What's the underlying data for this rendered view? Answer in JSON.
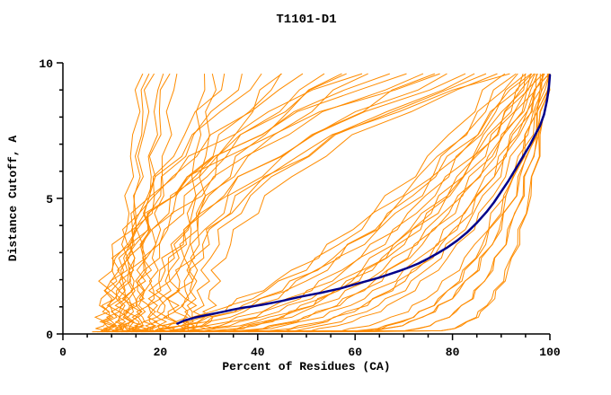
{
  "chart_data": {
    "type": "line",
    "title": "T1101-D1",
    "xlabel": "Percent of Residues (CA)",
    "ylabel": "Distance Cutoff, A",
    "xlim": [
      0,
      100
    ],
    "ylim": [
      0,
      10
    ],
    "x_major_ticks": [
      0,
      20,
      40,
      60,
      80,
      100
    ],
    "x_minor_step": 5,
    "y_major_ticks": [
      0,
      5,
      10
    ],
    "y_minor_step": 1,
    "grid": false,
    "legend": null,
    "colors": {
      "models": "#ff8c00",
      "highlighted": "#00008b",
      "axis": "#000000",
      "background": "#ffffff"
    },
    "highlighted_model_curve": {
      "name": "highlighted-model",
      "points": [
        [
          23.5,
          0.38
        ],
        [
          25,
          0.5
        ],
        [
          27,
          0.6
        ],
        [
          29,
          0.68
        ],
        [
          31,
          0.75
        ],
        [
          33,
          0.82
        ],
        [
          35,
          0.9
        ],
        [
          37,
          0.97
        ],
        [
          39,
          1.02
        ],
        [
          41,
          1.08
        ],
        [
          43,
          1.15
        ],
        [
          45,
          1.22
        ],
        [
          47,
          1.3
        ],
        [
          49,
          1.38
        ],
        [
          51,
          1.45
        ],
        [
          53,
          1.52
        ],
        [
          55,
          1.6
        ],
        [
          57,
          1.68
        ],
        [
          59,
          1.78
        ],
        [
          61,
          1.88
        ],
        [
          63,
          1.98
        ],
        [
          65,
          2.08
        ],
        [
          67,
          2.2
        ],
        [
          69,
          2.32
        ],
        [
          71,
          2.45
        ],
        [
          73,
          2.6
        ],
        [
          75,
          2.78
        ],
        [
          77,
          2.98
        ],
        [
          79,
          3.2
        ],
        [
          81,
          3.45
        ],
        [
          83,
          3.75
        ],
        [
          85,
          4.1
        ],
        [
          87,
          4.5
        ],
        [
          88.5,
          4.85
        ],
        [
          90,
          5.25
        ],
        [
          91.5,
          5.65
        ],
        [
          93,
          6.1
        ],
        [
          94.5,
          6.55
        ],
        [
          96,
          7.0
        ],
        [
          97,
          7.35
        ],
        [
          98,
          7.7
        ],
        [
          98.8,
          8.1
        ],
        [
          99.4,
          8.6
        ],
        [
          99.8,
          9.1
        ],
        [
          100,
          9.55
        ]
      ]
    },
    "model_curves": {
      "name": "model-ensemble",
      "count": 58,
      "y_top": 9.6,
      "y_samples": [
        0.12,
        0.2,
        0.3,
        0.45,
        0.62,
        0.82,
        1.05,
        1.3,
        1.6,
        1.95,
        2.35,
        2.8,
        3.3,
        3.85,
        4.45,
        5.1,
        5.8,
        6.55,
        7.35,
        8.2,
        9.0,
        9.6
      ],
      "curve_params_format": "[x_at_bottom, x_at_top, shape_exponent, jitter_seed, jitter_amplitude]",
      "curve_params": [
        [
          12,
          16,
          1.6,
          1,
          0.8
        ],
        [
          13,
          18,
          1.3,
          2,
          0.9
        ],
        [
          14,
          17,
          1.8,
          3,
          0.7
        ],
        [
          15,
          21,
          1.2,
          4,
          1.0
        ],
        [
          16,
          20,
          1.5,
          5,
          0.8
        ],
        [
          18,
          23,
          1.4,
          6,
          0.9
        ],
        [
          25,
          29,
          1.5,
          7,
          0.8
        ],
        [
          26,
          31,
          1.2,
          8,
          0.9
        ],
        [
          10,
          34,
          1.8,
          9,
          1.2
        ],
        [
          12,
          38,
          2.0,
          10,
          1.3
        ],
        [
          9,
          42,
          2.2,
          11,
          1.2
        ],
        [
          14,
          46,
          1.9,
          12,
          1.4
        ],
        [
          11,
          50,
          2.4,
          13,
          1.2
        ],
        [
          16,
          54,
          2.1,
          14,
          1.3
        ],
        [
          13,
          58,
          2.3,
          15,
          1.4
        ],
        [
          18,
          62,
          2.0,
          16,
          1.2
        ],
        [
          20,
          44,
          1.7,
          17,
          1.1
        ],
        [
          22,
          56,
          2.2,
          18,
          1.3
        ],
        [
          8,
          60,
          2.6,
          19,
          1.5
        ],
        [
          10,
          66,
          2.4,
          20,
          1.5
        ],
        [
          12,
          70,
          2.8,
          21,
          1.4
        ],
        [
          15,
          74,
          2.5,
          22,
          1.5
        ],
        [
          9,
          78,
          2.7,
          23,
          1.4
        ],
        [
          18,
          80,
          2.3,
          24,
          1.5
        ],
        [
          20,
          84,
          2.6,
          25,
          1.4
        ],
        [
          24,
          86,
          2.4,
          26,
          1.5
        ],
        [
          28,
          88,
          2.7,
          27,
          1.3
        ],
        [
          30,
          90,
          2.5,
          28,
          1.4
        ],
        [
          26,
          92,
          2.9,
          29,
          1.3
        ],
        [
          22,
          76,
          2.2,
          30,
          1.5
        ],
        [
          6,
          90,
          0.5,
          31,
          1.2
        ],
        [
          7,
          92,
          0.45,
          32,
          1.2
        ],
        [
          8,
          94,
          0.4,
          33,
          1.1
        ],
        [
          9,
          95,
          0.5,
          34,
          1.2
        ],
        [
          10,
          96,
          0.35,
          35,
          1.1
        ],
        [
          11,
          93,
          0.55,
          36,
          1.2
        ],
        [
          12,
          97,
          0.4,
          37,
          1.0
        ],
        [
          13,
          95,
          0.5,
          38,
          1.1
        ],
        [
          14,
          98,
          0.35,
          39,
          1.0
        ],
        [
          15,
          96,
          0.45,
          40,
          1.1
        ],
        [
          16,
          99,
          0.3,
          41,
          1.0
        ],
        [
          18,
          97,
          0.4,
          42,
          1.1
        ],
        [
          20,
          98,
          0.35,
          43,
          1.0
        ],
        [
          22,
          99,
          0.3,
          44,
          0.9
        ],
        [
          24,
          96,
          0.45,
          45,
          1.0
        ],
        [
          26,
          98,
          0.4,
          46,
          0.9
        ],
        [
          28,
          99,
          0.3,
          47,
          0.9
        ],
        [
          30,
          99,
          0.35,
          48,
          0.9
        ],
        [
          32,
          100,
          0.3,
          49,
          0.8
        ],
        [
          35,
          100,
          0.25,
          50,
          0.8
        ],
        [
          38,
          100,
          0.2,
          51,
          0.7
        ],
        [
          42,
          100,
          0.22,
          52,
          0.7
        ],
        [
          46,
          100,
          0.18,
          53,
          0.6
        ],
        [
          50,
          100,
          0.2,
          54,
          0.6
        ],
        [
          55,
          100,
          0.15,
          55,
          0.5
        ],
        [
          60,
          100,
          0.18,
          56,
          0.5
        ],
        [
          34,
          99,
          0.2,
          57,
          0.7
        ],
        [
          44,
          99,
          0.25,
          58,
          0.6
        ]
      ]
    }
  }
}
